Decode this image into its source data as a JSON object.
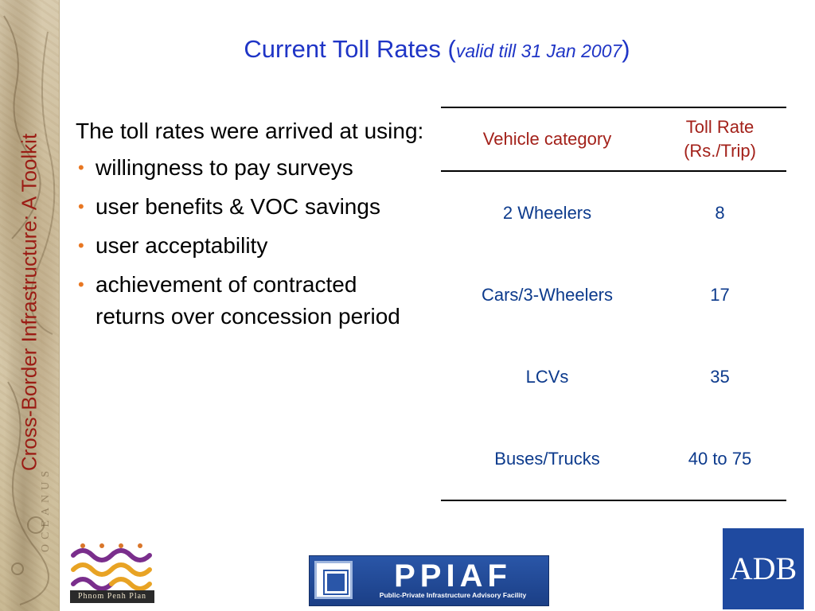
{
  "sidebar": {
    "title": "Cross-Border Infrastructure: A Toolkit",
    "faint_text": "OCEANUS"
  },
  "header": {
    "title_main": "Current Toll Rates (",
    "title_italic": "valid till 31 Jan 2007",
    "title_close": ")"
  },
  "body": {
    "lead": "The toll rates were arrived at using:",
    "bullets": [
      "willingness to pay surveys",
      "user benefits & VOC savings",
      "user acceptability",
      "achievement of contracted returns over concession period"
    ]
  },
  "table": {
    "headers": [
      "Vehicle category",
      "Toll Rate (Rs./Trip)"
    ],
    "rows": [
      {
        "category": "2 Wheelers",
        "rate": "8"
      },
      {
        "category": "Cars/3-Wheelers",
        "rate": "17"
      },
      {
        "category": "LCVs",
        "rate": "35"
      },
      {
        "category": "Buses/Trucks",
        "rate": "40 to 75"
      }
    ]
  },
  "logos": {
    "phnom_penh": "Phnom Penh Plan",
    "ppiaf_name": "PPIAF",
    "ppiaf_sub": "Public-Private Infrastructure Advisory Facility",
    "adb": "ADB"
  },
  "colors": {
    "title_blue": "#1f35c6",
    "header_red": "#a3211a",
    "cell_blue": "#0c3a8c",
    "bullet_orange": "#e87722",
    "side_title_red": "#9b1c14"
  }
}
